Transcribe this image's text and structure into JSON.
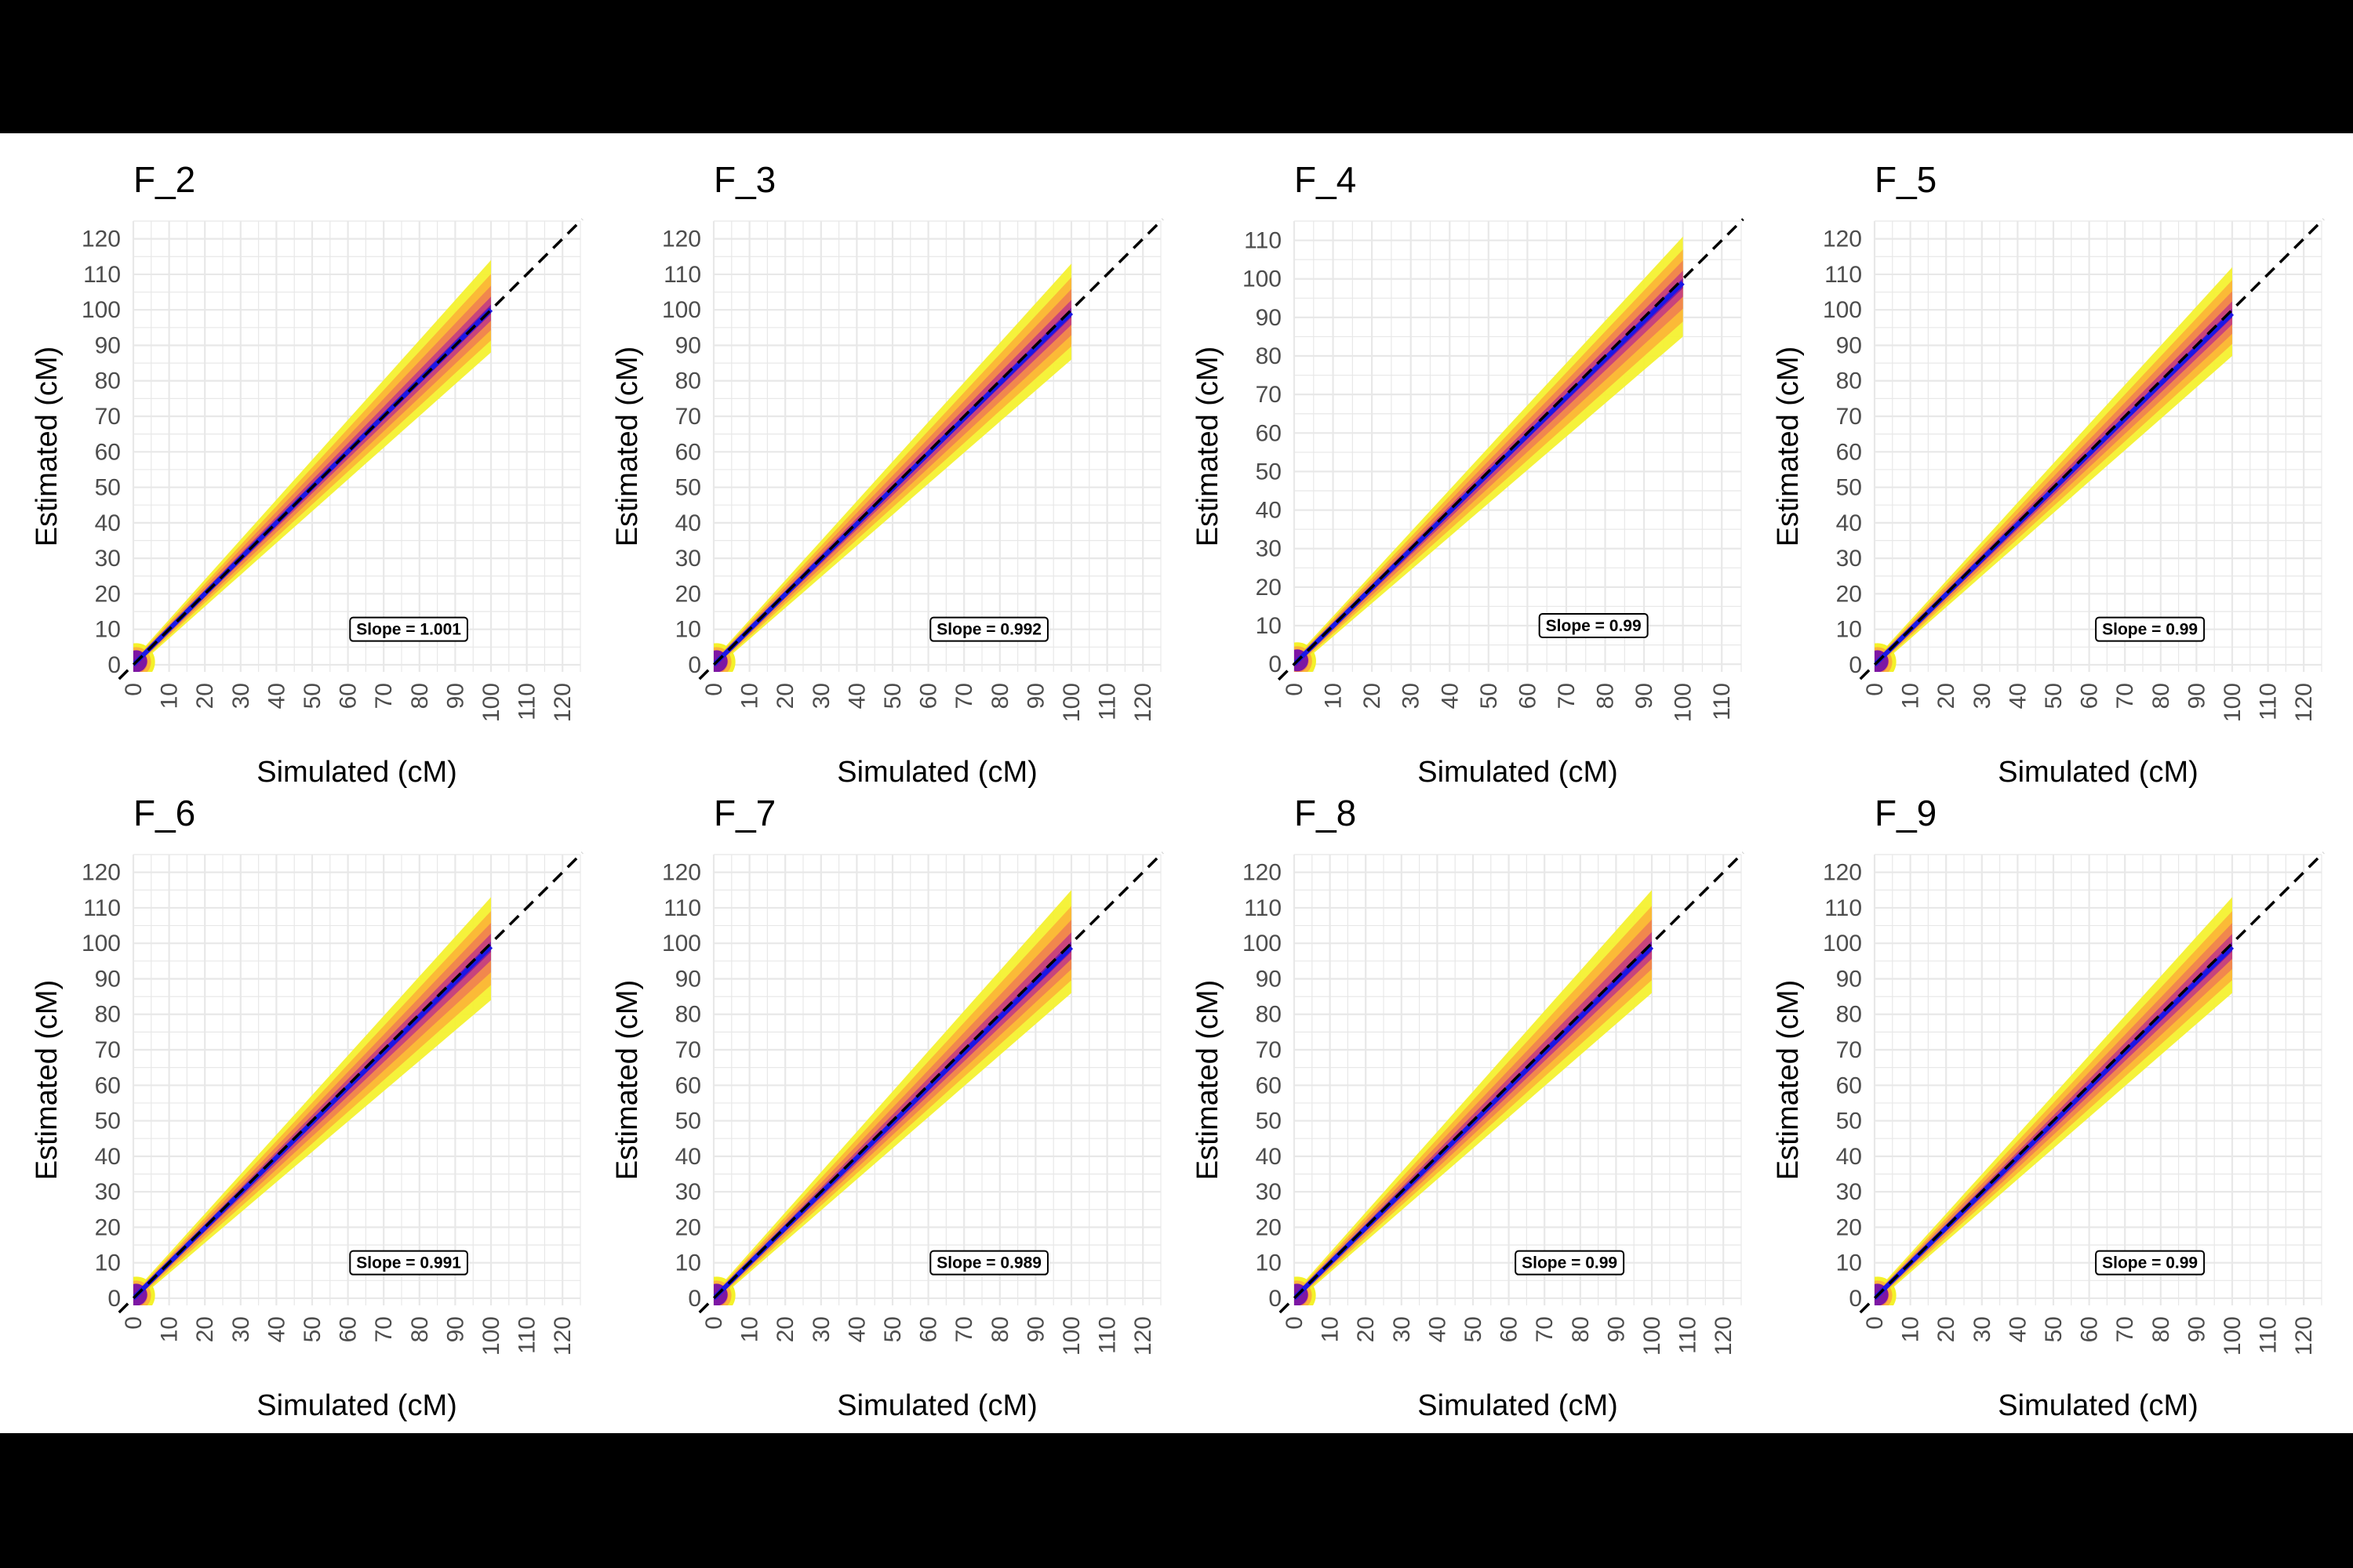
{
  "chart_data": [
    {
      "type": "scatter",
      "title": "F_2",
      "xlabel": "Simulated (cM)",
      "ylabel": "Estimated (cM)",
      "xlim": [
        0,
        125
      ],
      "ylim": [
        -2,
        125
      ],
      "x_ticks": [
        "0",
        "10",
        "20",
        "30",
        "40",
        "50",
        "60",
        "70",
        "80",
        "90",
        "100",
        "110",
        "120"
      ],
      "y_ticks": [
        "0",
        "10",
        "20",
        "30",
        "40",
        "50",
        "60",
        "70",
        "80",
        "90",
        "100",
        "110",
        "120"
      ],
      "x_range": [
        0,
        100
      ],
      "band_upper_at_max": 114,
      "band_lower_at_max": 88,
      "reference_line": "y = x (dashed)",
      "fit_line_slope": 1.001,
      "annotation": "Slope = 1.001"
    },
    {
      "type": "scatter",
      "title": "F_3",
      "xlabel": "Simulated (cM)",
      "ylabel": "Estimated (cM)",
      "xlim": [
        0,
        125
      ],
      "ylim": [
        -2,
        125
      ],
      "x_ticks": [
        "0",
        "10",
        "20",
        "30",
        "40",
        "50",
        "60",
        "70",
        "80",
        "90",
        "100",
        "110",
        "120"
      ],
      "y_ticks": [
        "0",
        "10",
        "20",
        "30",
        "40",
        "50",
        "60",
        "70",
        "80",
        "90",
        "100",
        "110",
        "120"
      ],
      "x_range": [
        0,
        100
      ],
      "band_upper_at_max": 113,
      "band_lower_at_max": 86,
      "reference_line": "y = x (dashed)",
      "fit_line_slope": 0.992,
      "annotation": "Slope = 0.992"
    },
    {
      "type": "scatter",
      "title": "F_4",
      "xlabel": "Simulated (cM)",
      "ylabel": "Estimated (cM)",
      "xlim": [
        0,
        115
      ],
      "ylim": [
        -2,
        115
      ],
      "x_ticks": [
        "0",
        "10",
        "20",
        "30",
        "40",
        "50",
        "60",
        "70",
        "80",
        "90",
        "100",
        "110"
      ],
      "y_ticks": [
        "0",
        "10",
        "20",
        "30",
        "40",
        "50",
        "60",
        "70",
        "80",
        "90",
        "100",
        "110"
      ],
      "x_range": [
        0,
        100
      ],
      "band_upper_at_max": 111,
      "band_lower_at_max": 85,
      "reference_line": "y = x (dashed)",
      "fit_line_slope": 0.99,
      "annotation": "Slope = 0.99"
    },
    {
      "type": "scatter",
      "title": "F_5",
      "xlabel": "Simulated (cM)",
      "ylabel": "Estimated (cM)",
      "xlim": [
        0,
        125
      ],
      "ylim": [
        -2,
        125
      ],
      "x_ticks": [
        "0",
        "10",
        "20",
        "30",
        "40",
        "50",
        "60",
        "70",
        "80",
        "90",
        "100",
        "110",
        "120"
      ],
      "y_ticks": [
        "0",
        "10",
        "20",
        "30",
        "40",
        "50",
        "60",
        "70",
        "80",
        "90",
        "100",
        "110",
        "120"
      ],
      "x_range": [
        0,
        100
      ],
      "band_upper_at_max": 112,
      "band_lower_at_max": 87,
      "reference_line": "y = x (dashed)",
      "fit_line_slope": 0.99,
      "annotation": "Slope = 0.99"
    },
    {
      "type": "scatter",
      "title": "F_6",
      "xlabel": "Simulated (cM)",
      "ylabel": "Estimated (cM)",
      "xlim": [
        0,
        125
      ],
      "ylim": [
        -2,
        125
      ],
      "x_ticks": [
        "0",
        "10",
        "20",
        "30",
        "40",
        "50",
        "60",
        "70",
        "80",
        "90",
        "100",
        "110",
        "120"
      ],
      "y_ticks": [
        "0",
        "10",
        "20",
        "30",
        "40",
        "50",
        "60",
        "70",
        "80",
        "90",
        "100",
        "110",
        "120"
      ],
      "x_range": [
        0,
        100
      ],
      "band_upper_at_max": 113,
      "band_lower_at_max": 84,
      "reference_line": "y = x (dashed)",
      "fit_line_slope": 0.991,
      "annotation": "Slope = 0.991"
    },
    {
      "type": "scatter",
      "title": "F_7",
      "xlabel": "Simulated (cM)",
      "ylabel": "Estimated (cM)",
      "xlim": [
        0,
        125
      ],
      "ylim": [
        -2,
        125
      ],
      "x_ticks": [
        "0",
        "10",
        "20",
        "30",
        "40",
        "50",
        "60",
        "70",
        "80",
        "90",
        "100",
        "110",
        "120"
      ],
      "y_ticks": [
        "0",
        "10",
        "20",
        "30",
        "40",
        "50",
        "60",
        "70",
        "80",
        "90",
        "100",
        "110",
        "120"
      ],
      "x_range": [
        0,
        100
      ],
      "band_upper_at_max": 115,
      "band_lower_at_max": 86,
      "reference_line": "y = x (dashed)",
      "fit_line_slope": 0.989,
      "annotation": "Slope = 0.989"
    },
    {
      "type": "scatter",
      "title": "F_8",
      "xlabel": "Simulated (cM)",
      "ylabel": "Estimated (cM)",
      "xlim": [
        0,
        125
      ],
      "ylim": [
        -2,
        125
      ],
      "x_ticks": [
        "0",
        "10",
        "20",
        "30",
        "40",
        "50",
        "60",
        "70",
        "80",
        "90",
        "100",
        "110",
        "120"
      ],
      "y_ticks": [
        "0",
        "10",
        "20",
        "30",
        "40",
        "50",
        "60",
        "70",
        "80",
        "90",
        "100",
        "110",
        "120"
      ],
      "x_range": [
        0,
        100
      ],
      "band_upper_at_max": 115,
      "band_lower_at_max": 86,
      "reference_line": "y = x (dashed)",
      "fit_line_slope": 0.99,
      "annotation": "Slope = 0.99"
    },
    {
      "type": "scatter",
      "title": "F_9",
      "xlabel": "Simulated (cM)",
      "ylabel": "Estimated (cM)",
      "xlim": [
        0,
        125
      ],
      "ylim": [
        -2,
        125
      ],
      "x_ticks": [
        "0",
        "10",
        "20",
        "30",
        "40",
        "50",
        "60",
        "70",
        "80",
        "90",
        "100",
        "110",
        "120"
      ],
      "y_ticks": [
        "0",
        "10",
        "20",
        "30",
        "40",
        "50",
        "60",
        "70",
        "80",
        "90",
        "100",
        "110",
        "120"
      ],
      "x_range": [
        0,
        100
      ],
      "band_upper_at_max": 113,
      "band_lower_at_max": 86,
      "reference_line": "y = x (dashed)",
      "fit_line_slope": 0.99,
      "annotation": "Slope = 0.99"
    }
  ],
  "colors": {
    "density_outer": "#f4f12a",
    "density_mid": "#fbb537",
    "density_inner": "#f0824f",
    "density_core": "#c43e80",
    "density_center": "#7d16a4",
    "fit_line": "#1a18e6",
    "reference_line": "#000000",
    "grid": "#e8e8e8"
  }
}
